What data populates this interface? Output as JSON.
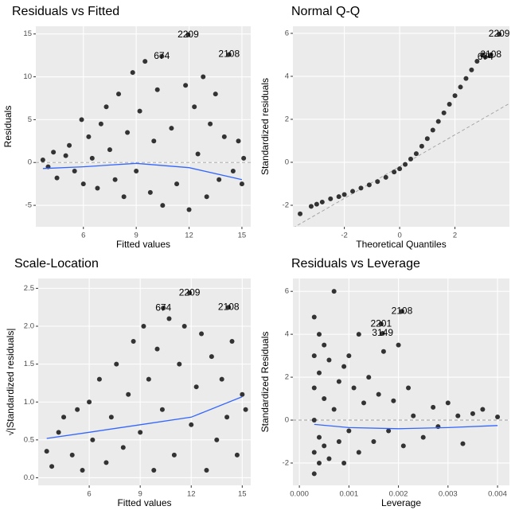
{
  "chart_data": [
    {
      "type": "scatter",
      "title": "Residuals vs Fitted",
      "xlabel": "Fitted values",
      "ylabel": "Residuals",
      "xlim": [
        3.3,
        15.5
      ],
      "ylim": [
        -7.5,
        15.9
      ],
      "xticks": [
        6,
        9,
        12,
        15
      ],
      "yticks": [
        -5,
        0,
        5,
        10,
        15
      ],
      "grid": true,
      "point_color": "#333333",
      "x": [
        3.7,
        4.0,
        4.3,
        4.5,
        5.0,
        5.2,
        5.5,
        5.9,
        6.0,
        6.3,
        6.5,
        6.8,
        7.0,
        7.3,
        7.5,
        7.8,
        8.0,
        8.3,
        8.5,
        8.8,
        9.0,
        9.2,
        9.5,
        9.8,
        10.0,
        10.2,
        10.5,
        10.45,
        11.0,
        11.3,
        11.95,
        11.8,
        12.0,
        12.3,
        12.5,
        12.8,
        13.0,
        13.2,
        13.5,
        13.7,
        14.0,
        14.27,
        14.5,
        14.8,
        15.0,
        15.1
      ],
      "y": [
        0.3,
        -0.5,
        1.2,
        -1.8,
        0.8,
        2.0,
        -1.0,
        5.0,
        -2.5,
        3.0,
        0.5,
        -3.0,
        4.5,
        6.5,
        1.5,
        -2.0,
        8.0,
        -4.0,
        3.5,
        10.5,
        -1.0,
        6.0,
        11.8,
        -3.5,
        2.5,
        8.5,
        -5.0,
        12.4,
        4.0,
        -2.5,
        14.9,
        9.0,
        -5.5,
        6.5,
        1.0,
        10.0,
        -4.0,
        4.5,
        8.0,
        -2.0,
        3.0,
        12.6,
        -1.0,
        2.5,
        -2.5,
        0.5
      ],
      "smooth": {
        "color": "#3366ff",
        "x": [
          3.7,
          6,
          9,
          12,
          15
        ],
        "y": [
          -0.7,
          -0.5,
          -0.1,
          -0.6,
          -2.0
        ]
      },
      "ref_line": {
        "slope": 0,
        "intercept": 0
      },
      "annotations": [
        {
          "text": "2209",
          "x": 11.95,
          "y": 14.9
        },
        {
          "text": "674",
          "x": 10.45,
          "y": 12.4
        },
        {
          "text": "2108",
          "x": 14.27,
          "y": 12.6
        }
      ]
    },
    {
      "type": "scatter",
      "title": "Normal Q-Q",
      "xlabel": "Theoretical Quantiles",
      "ylabel": "Standardized residuals",
      "xlim": [
        -3.86,
        3.97
      ],
      "ylim": [
        -3,
        6.33
      ],
      "xticks": [
        -2,
        0,
        2
      ],
      "yticks": [
        -2,
        0,
        2,
        4,
        6
      ],
      "grid": true,
      "point_color": "#333333",
      "x": [
        -3.6,
        -3.2,
        -3.0,
        -2.8,
        -2.5,
        -2.2,
        -2.0,
        -1.7,
        -1.4,
        -1.1,
        -0.8,
        -0.5,
        -0.2,
        0,
        0.2,
        0.4,
        0.6,
        0.8,
        1.0,
        1.2,
        1.4,
        1.6,
        1.8,
        2.0,
        2.2,
        2.4,
        2.6,
        2.8,
        3.0,
        3.1,
        3.3,
        3.6
      ],
      "y": [
        -2.4,
        -2.05,
        -1.95,
        -1.85,
        -1.7,
        -1.6,
        -1.5,
        -1.35,
        -1.2,
        -1.05,
        -0.9,
        -0.7,
        -0.45,
        -0.3,
        -0.1,
        0.15,
        0.4,
        0.75,
        1.1,
        1.5,
        1.9,
        2.3,
        2.7,
        3.1,
        3.5,
        3.9,
        4.3,
        4.7,
        5.0,
        4.9,
        5.0,
        5.96
      ],
      "ref_line": {
        "slope": 0.74,
        "intercept": -0.2
      },
      "annotations": [
        {
          "text": "2209",
          "x": 3.6,
          "y": 5.96
        },
        {
          "text": "2108",
          "x": 3.3,
          "y": 5.0
        },
        {
          "text": "674",
          "x": 3.1,
          "y": 4.9
        }
      ]
    },
    {
      "type": "scatter",
      "title": "Scale-Location",
      "xlabel": "Fitted values",
      "ylabel": "√|Standardized residuals|",
      "xlim": [
        3.0,
        15.5
      ],
      "ylim": [
        -0.1,
        2.63
      ],
      "xticks": [
        6,
        9,
        12,
        15
      ],
      "yticks": [
        {
          "value": 0,
          "label": "0.0"
        },
        0.5,
        {
          "value": 1,
          "label": "1.0"
        },
        1.5,
        {
          "value": 2,
          "label": "2.0"
        },
        2.5
      ],
      "grid": true,
      "point_color": "#333333",
      "x": [
        3.5,
        3.8,
        4.2,
        4.5,
        5.0,
        5.3,
        5.6,
        6.0,
        6.2,
        6.6,
        7.0,
        7.3,
        7.6,
        8.0,
        8.3,
        8.6,
        9.0,
        9.2,
        9.5,
        9.8,
        10.0,
        10.3,
        10.7,
        11.0,
        11.3,
        11.6,
        12.0,
        12.3,
        12.6,
        12.9,
        13.2,
        13.5,
        13.8,
        14.1,
        14.4,
        14.7,
        15.0,
        15.2,
        11.9,
        10.36,
        14.2
      ],
      "y": [
        0.35,
        0.15,
        0.6,
        0.8,
        0.3,
        0.9,
        0.1,
        1.0,
        0.5,
        1.3,
        0.2,
        0.8,
        1.5,
        0.4,
        1.1,
        1.8,
        0.6,
        2.0,
        1.3,
        0.1,
        1.7,
        0.9,
        2.1,
        0.3,
        1.5,
        2.0,
        0.7,
        1.2,
        1.9,
        0.1,
        1.6,
        0.5,
        1.3,
        0.8,
        1.8,
        0.3,
        1.1,
        0.9,
        2.44,
        2.24,
        2.25
      ],
      "smooth": {
        "color": "#3366ff",
        "x": [
          3.5,
          6,
          9,
          12,
          15
        ],
        "y": [
          0.52,
          0.6,
          0.7,
          0.8,
          1.07
        ]
      },
      "annotations": [
        {
          "text": "2209",
          "x": 11.9,
          "y": 2.44
        },
        {
          "text": "674",
          "x": 10.36,
          "y": 2.24
        },
        {
          "text": "2108",
          "x": 14.2,
          "y": 2.25
        }
      ]
    },
    {
      "type": "scatter",
      "title": "Residuals vs Leverage",
      "xlabel": "Leverage",
      "ylabel": "Standardized Residuals",
      "xlim": [
        -0.00013,
        0.00424
      ],
      "ylim": [
        -3.04,
        6.6
      ],
      "xticks": [
        {
          "value": 0,
          "label": "0.000"
        },
        0.001,
        0.002,
        0.003,
        0.004
      ],
      "yticks": [
        -2,
        0,
        2,
        4,
        6
      ],
      "grid": true,
      "point_color": "#333333",
      "x": [
        0.0003,
        0.0003,
        0.0003,
        0.0003,
        0.0003,
        0.0003,
        0.0004,
        0.0004,
        0.0004,
        0.0004,
        0.0005,
        0.0005,
        0.0005,
        0.0006,
        0.0006,
        0.0007,
        0.0007,
        0.0008,
        0.0008,
        0.0009,
        0.0009,
        0.001,
        0.001,
        0.0011,
        0.0012,
        0.0012,
        0.0013,
        0.0014,
        0.0015,
        0.0016,
        0.0017,
        0.0018,
        0.0019,
        0.002,
        0.0021,
        0.0022,
        0.0023,
        0.0025,
        0.0027,
        0.0028,
        0.003,
        0.0032,
        0.0033,
        0.0035,
        0.0037,
        0.004,
        0.00207,
        0.00165,
        0.00168
      ],
      "y": [
        4.8,
        3.0,
        1.5,
        0,
        -1.5,
        -2.5,
        4.0,
        2.2,
        -0.8,
        -2.0,
        3.5,
        1.0,
        -1.2,
        2.8,
        -1.8,
        6.0,
        0.5,
        1.8,
        -1.0,
        2.5,
        -2.0,
        3.0,
        -0.5,
        1.5,
        4.0,
        -1.5,
        0.8,
        2.0,
        -1.0,
        1.2,
        3.2,
        -0.5,
        0.9,
        3.5,
        -1.2,
        1.5,
        0.2,
        -0.8,
        0.6,
        -0.3,
        0.8,
        0.2,
        -1.1,
        0.3,
        0.5,
        0.15,
        5.07,
        4.48,
        4.04
      ],
      "smooth": {
        "color": "#3366ff",
        "x": [
          0.0003,
          0.001,
          0.002,
          0.003,
          0.004
        ],
        "y": [
          -0.2,
          -0.35,
          -0.4,
          -0.35,
          -0.25
        ]
      },
      "ref_line": {
        "slope": 0,
        "intercept": 0
      },
      "annotations": [
        {
          "text": "2108",
          "x": 0.00207,
          "y": 5.07
        },
        {
          "text": "2201",
          "x": 0.00165,
          "y": 4.48
        },
        {
          "text": "3149",
          "x": 0.00168,
          "y": 4.04
        }
      ]
    }
  ]
}
